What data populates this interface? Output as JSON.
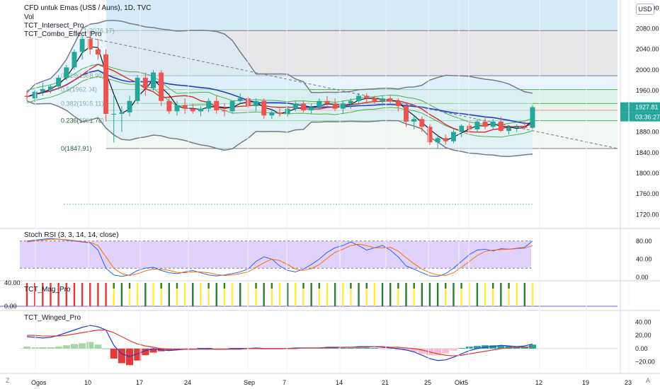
{
  "header": {
    "symbol": "CFD untuk Emas (US$ / Auns), 1D, TVC",
    "indicators": [
      "Vol",
      "TCT_Intersect_Pro",
      "TCT_Combo_Effect_Pro"
    ],
    "currency": "USD"
  },
  "price_axis": {
    "ticks": [
      "2120.00",
      "2080.00",
      "2040.00",
      "2000.00",
      "1960.00",
      "1920.00",
      "1880.00",
      "1840.00",
      "1800.00",
      "1760.00",
      "1720.00"
    ],
    "last_price": "1927.81",
    "countdown": "03:36:27"
  },
  "time_axis": {
    "labels": [
      "Ogos",
      "10",
      "17",
      "24",
      "Sep",
      "7",
      "14",
      "21",
      "25",
      "Okt",
      "5",
      "12",
      "19",
      "23"
    ]
  },
  "fib_levels": [
    {
      "label": "1(2076.17)",
      "value": 2076.17
    },
    {
      "label": "0.618(1988.99)",
      "value": 1988.99
    },
    {
      "label": "0.5(1962.04)",
      "value": 1962.04
    },
    {
      "label": "0.382(1935.11)",
      "value": 1935.11
    },
    {
      "label": "0.236(1901.78)",
      "value": 1901.78
    },
    {
      "label": "0(1847.91)",
      "value": 1847.91
    }
  ],
  "panes": {
    "stoch": {
      "title": "Stoch RSI (3, 3, 14, 14, close)",
      "ticks": [
        "80.00",
        "40.00",
        "0.00"
      ]
    },
    "mag": {
      "title": "TCT_Mag_Pro",
      "ticks": [
        "40.00",
        "0.00"
      ]
    },
    "winged": {
      "title": "TCT_Winged_Pro",
      "ticks": [
        "40.00",
        "20.00",
        "0.00",
        "−20.00"
      ]
    }
  },
  "corner": {
    "left": "Z",
    "right": "A"
  },
  "colors": {
    "bull": "#26a69a",
    "bear": "#ef5350",
    "stoch_fill": "#e1d2fb",
    "fib_upper": "#d7eaf8"
  },
  "chart_data": {
    "type": "candlestick",
    "ylim": [
      1700,
      2130
    ],
    "candles": [
      {
        "o": 1950,
        "h": 1960,
        "l": 1940,
        "c": 1948
      },
      {
        "o": 1945,
        "h": 1962,
        "l": 1938,
        "c": 1958
      },
      {
        "o": 1958,
        "h": 1975,
        "l": 1950,
        "c": 1963
      },
      {
        "o": 1962,
        "h": 1972,
        "l": 1955,
        "c": 1968
      },
      {
        "o": 1968,
        "h": 1990,
        "l": 1962,
        "c": 1985
      },
      {
        "o": 1985,
        "h": 2010,
        "l": 1980,
        "c": 2005
      },
      {
        "o": 2005,
        "h": 2040,
        "l": 2000,
        "c": 2035
      },
      {
        "o": 2035,
        "h": 2065,
        "l": 2020,
        "c": 2060
      },
      {
        "o": 2060,
        "h": 2076,
        "l": 2030,
        "c": 2040
      },
      {
        "o": 2040,
        "h": 2060,
        "l": 2020,
        "c": 2030
      },
      {
        "o": 2030,
        "h": 2040,
        "l": 1900,
        "c": 1915
      },
      {
        "o": 1915,
        "h": 1950,
        "l": 1860,
        "c": 1915
      },
      {
        "o": 1915,
        "h": 1930,
        "l": 1880,
        "c": 1918
      },
      {
        "o": 1918,
        "h": 1950,
        "l": 1910,
        "c": 1940
      },
      {
        "o": 1940,
        "h": 1990,
        "l": 1935,
        "c": 1985
      },
      {
        "o": 1985,
        "h": 1995,
        "l": 1950,
        "c": 1965
      },
      {
        "o": 1965,
        "h": 2000,
        "l": 1960,
        "c": 1995
      },
      {
        "o": 1995,
        "h": 2000,
        "l": 1930,
        "c": 1940
      },
      {
        "o": 1940,
        "h": 1955,
        "l": 1915,
        "c": 1920
      },
      {
        "o": 1920,
        "h": 1940,
        "l": 1912,
        "c": 1932
      },
      {
        "o": 1932,
        "h": 1945,
        "l": 1915,
        "c": 1925
      },
      {
        "o": 1925,
        "h": 1935,
        "l": 1915,
        "c": 1920
      },
      {
        "o": 1920,
        "h": 1930,
        "l": 1910,
        "c": 1925
      },
      {
        "o": 1925,
        "h": 1945,
        "l": 1918,
        "c": 1940
      },
      {
        "o": 1940,
        "h": 1950,
        "l": 1915,
        "c": 1922
      },
      {
        "o": 1922,
        "h": 1935,
        "l": 1910,
        "c": 1920
      },
      {
        "o": 1920,
        "h": 1940,
        "l": 1915,
        "c": 1940
      },
      {
        "o": 1940,
        "h": 1955,
        "l": 1935,
        "c": 1945
      },
      {
        "o": 1945,
        "h": 1950,
        "l": 1925,
        "c": 1930
      },
      {
        "o": 1930,
        "h": 1945,
        "l": 1920,
        "c": 1940
      },
      {
        "o": 1940,
        "h": 1945,
        "l": 1905,
        "c": 1912
      },
      {
        "o": 1912,
        "h": 1925,
        "l": 1905,
        "c": 1918
      },
      {
        "o": 1918,
        "h": 1925,
        "l": 1910,
        "c": 1915
      },
      {
        "o": 1915,
        "h": 1930,
        "l": 1910,
        "c": 1925
      },
      {
        "o": 1925,
        "h": 1940,
        "l": 1920,
        "c": 1935
      },
      {
        "o": 1935,
        "h": 1940,
        "l": 1918,
        "c": 1922
      },
      {
        "o": 1922,
        "h": 1935,
        "l": 1915,
        "c": 1928
      },
      {
        "o": 1928,
        "h": 1945,
        "l": 1925,
        "c": 1940
      },
      {
        "o": 1940,
        "h": 1950,
        "l": 1930,
        "c": 1935
      },
      {
        "o": 1935,
        "h": 1945,
        "l": 1920,
        "c": 1925
      },
      {
        "o": 1925,
        "h": 1940,
        "l": 1915,
        "c": 1935
      },
      {
        "o": 1935,
        "h": 1945,
        "l": 1925,
        "c": 1940
      },
      {
        "o": 1940,
        "h": 1955,
        "l": 1935,
        "c": 1950
      },
      {
        "o": 1950,
        "h": 1955,
        "l": 1935,
        "c": 1945
      },
      {
        "o": 1945,
        "h": 1950,
        "l": 1935,
        "c": 1940
      },
      {
        "o": 1940,
        "h": 1950,
        "l": 1930,
        "c": 1945
      },
      {
        "o": 1945,
        "h": 1950,
        "l": 1935,
        "c": 1940
      },
      {
        "o": 1940,
        "h": 1945,
        "l": 1920,
        "c": 1930
      },
      {
        "o": 1930,
        "h": 1935,
        "l": 1890,
        "c": 1900
      },
      {
        "o": 1900,
        "h": 1910,
        "l": 1885,
        "c": 1905
      },
      {
        "o": 1905,
        "h": 1910,
        "l": 1880,
        "c": 1890
      },
      {
        "o": 1890,
        "h": 1895,
        "l": 1855,
        "c": 1860
      },
      {
        "o": 1860,
        "h": 1875,
        "l": 1848,
        "c": 1868
      },
      {
        "o": 1868,
        "h": 1875,
        "l": 1855,
        "c": 1862
      },
      {
        "o": 1862,
        "h": 1885,
        "l": 1858,
        "c": 1880
      },
      {
        "o": 1880,
        "h": 1895,
        "l": 1870,
        "c": 1892
      },
      {
        "o": 1892,
        "h": 1900,
        "l": 1880,
        "c": 1885
      },
      {
        "o": 1885,
        "h": 1905,
        "l": 1880,
        "c": 1900
      },
      {
        "o": 1900,
        "h": 1910,
        "l": 1885,
        "c": 1890
      },
      {
        "o": 1890,
        "h": 1905,
        "l": 1885,
        "c": 1900
      },
      {
        "o": 1900,
        "h": 1910,
        "l": 1880,
        "c": 1882
      },
      {
        "o": 1882,
        "h": 1892,
        "l": 1875,
        "c": 1888
      },
      {
        "o": 1888,
        "h": 1895,
        "l": 1880,
        "c": 1890
      },
      {
        "o": 1890,
        "h": 1900,
        "l": 1885,
        "c": 1888
      },
      {
        "o": 1888,
        "h": 1932,
        "l": 1885,
        "c": 1928
      }
    ],
    "stoch_k": [
      80,
      82,
      84,
      86,
      84,
      82,
      80,
      78,
      76,
      60,
      20,
      5,
      2,
      5,
      15,
      20,
      22,
      15,
      10,
      8,
      12,
      15,
      10,
      5,
      3,
      5,
      8,
      12,
      18,
      35,
      45,
      40,
      25,
      15,
      12,
      18,
      28,
      40,
      55,
      65,
      70,
      78,
      70,
      60,
      65,
      70,
      60,
      45,
      25,
      18,
      10,
      3,
      2,
      8,
      20,
      35,
      50,
      60,
      62,
      58,
      63,
      62,
      64,
      66,
      80
    ],
    "stoch_d": [
      78,
      80,
      82,
      84,
      84,
      83,
      81,
      79,
      77,
      70,
      45,
      20,
      8,
      4,
      8,
      14,
      18,
      18,
      15,
      11,
      10,
      12,
      12,
      10,
      6,
      4,
      5,
      8,
      12,
      22,
      32,
      40,
      37,
      28,
      18,
      15,
      19,
      28,
      42,
      55,
      62,
      70,
      73,
      70,
      65,
      65,
      66,
      58,
      43,
      30,
      18,
      10,
      5,
      4,
      10,
      22,
      35,
      48,
      57,
      60,
      61,
      62,
      63,
      64,
      70
    ],
    "winged_macd": [
      18,
      17,
      16,
      17,
      20,
      24,
      28,
      32,
      35,
      33,
      28,
      5,
      -8,
      -12,
      -8,
      -3,
      0,
      -2,
      -3,
      -2,
      -1,
      -1,
      0,
      0,
      -1,
      -1,
      0,
      0,
      0,
      1,
      0,
      0,
      0,
      0,
      1,
      1,
      1,
      1,
      2,
      2,
      2,
      2,
      3,
      3,
      3,
      2,
      1,
      0,
      -2,
      -5,
      -10,
      -15,
      -18,
      -17,
      -13,
      -8,
      -3,
      0,
      2,
      3,
      5,
      4,
      3,
      4,
      7
    ],
    "winged_signal": [
      20,
      20,
      19,
      19,
      19,
      20,
      22,
      24,
      26,
      28,
      28,
      24,
      18,
      12,
      7,
      4,
      2,
      0,
      -1,
      -1,
      -1,
      -1,
      -1,
      -1,
      -1,
      -1,
      -1,
      -1,
      0,
      0,
      0,
      0,
      0,
      0,
      0,
      1,
      1,
      1,
      1,
      1,
      2,
      2,
      2,
      2,
      3,
      3,
      2,
      2,
      1,
      0,
      -2,
      -5,
      -8,
      -10,
      -11,
      -10,
      -8,
      -6,
      -4,
      -2,
      0,
      1,
      2,
      2,
      3
    ],
    "winged_hist": [
      3,
      2,
      2,
      2,
      3,
      5,
      7,
      8,
      10,
      6,
      0,
      -15,
      -22,
      -25,
      -18,
      -10,
      -6,
      -4,
      -3,
      -2,
      -1,
      -1,
      1,
      1,
      -1,
      -1,
      1,
      1,
      1,
      1,
      -1,
      -1,
      -1,
      1,
      1,
      1,
      1,
      1,
      1,
      1,
      1,
      1,
      1,
      1,
      1,
      -1,
      -1,
      -2,
      -3,
      -5,
      -8,
      -10,
      -10,
      -7,
      -3,
      1,
      3,
      4,
      5,
      5,
      5,
      4,
      3,
      3,
      6
    ],
    "mag_bars": [
      40,
      40,
      40,
      40,
      40,
      40,
      40,
      40,
      40,
      40,
      40,
      40,
      40,
      40,
      40,
      40,
      40,
      40,
      40,
      40,
      40,
      40,
      40,
      40,
      40,
      40,
      40,
      40,
      40,
      40,
      40,
      40,
      40,
      40,
      40,
      40,
      40,
      40,
      40,
      40,
      40,
      40,
      40,
      40,
      40,
      40,
      40,
      40,
      40,
      40,
      40,
      40,
      40,
      40,
      40,
      40,
      40,
      40,
      40,
      40,
      40,
      40,
      40,
      40,
      40
    ]
  }
}
